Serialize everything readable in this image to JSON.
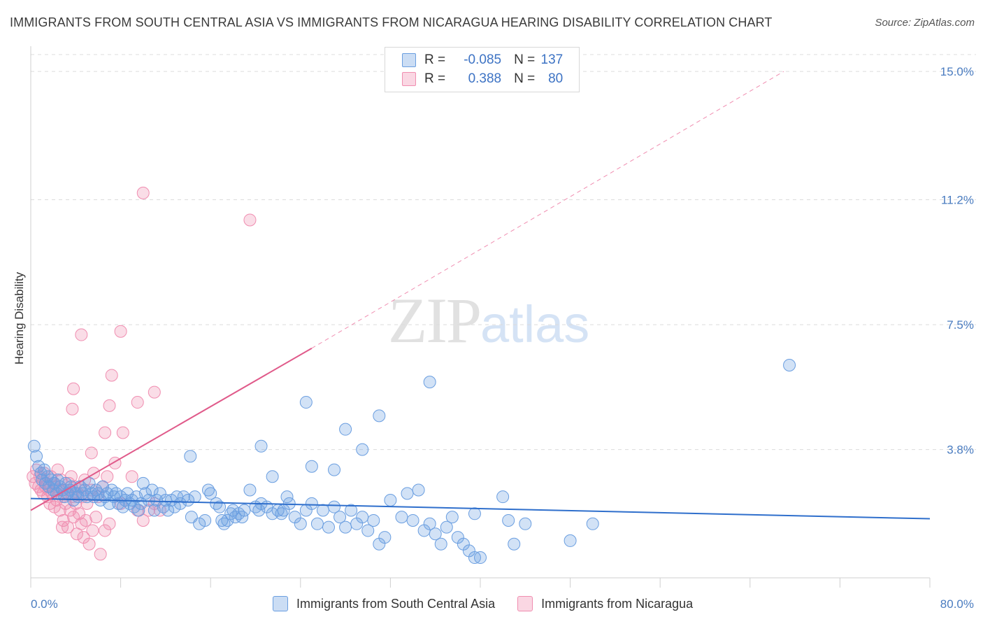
{
  "title": "IMMIGRANTS FROM SOUTH CENTRAL ASIA VS IMMIGRANTS FROM NICARAGUA HEARING DISABILITY CORRELATION CHART",
  "source": "Source: ZipAtlas.com",
  "watermark": {
    "zip": "ZIP",
    "atlas": "atlas"
  },
  "legend": {
    "rows": [
      {
        "r_label": "R =",
        "r_value": "-0.085",
        "n_label": "N =",
        "n_value": "137",
        "color": "#6a9ee0"
      },
      {
        "r_label": "R =",
        "r_value": "0.388",
        "n_label": "N =",
        "n_value": "80",
        "color": "#f08db0"
      }
    ]
  },
  "bottom_legend": {
    "series1": "Immigrants from South Central Asia",
    "series2": "Immigrants from Nicaragua"
  },
  "chart_data": {
    "type": "scatter",
    "title": "IMMIGRANTS FROM SOUTH CENTRAL ASIA VS IMMIGRANTS FROM NICARAGUA HEARING DISABILITY CORRELATION CHART",
    "xlabel": "",
    "ylabel": "Hearing Disability",
    "xlim": [
      0,
      80
    ],
    "ylim": [
      0,
      15.5
    ],
    "x_ticks": [
      "0.0%",
      "80.0%"
    ],
    "y_ticks": [
      {
        "value": 3.8,
        "label": "3.8%"
      },
      {
        "value": 7.5,
        "label": "7.5%"
      },
      {
        "value": 11.2,
        "label": "11.2%"
      },
      {
        "value": 15.0,
        "label": "15.0%"
      }
    ],
    "grid": true,
    "legend_position": "top-center",
    "colors": {
      "blue": "#6a9ee0",
      "blue_line": "#2f6fcc",
      "pink": "#f08db0",
      "pink_line": "#e05a8a"
    },
    "series": [
      {
        "name": "Immigrants from South Central Asia",
        "color": "#6a9ee0",
        "trend": {
          "x": [
            0,
            80
          ],
          "y": [
            2.35,
            1.75
          ],
          "style": "solid"
        },
        "points": [
          [
            0.3,
            3.9
          ],
          [
            0.5,
            3.6
          ],
          [
            0.7,
            3.3
          ],
          [
            0.9,
            3.1
          ],
          [
            1.0,
            2.9
          ],
          [
            1.2,
            3.2
          ],
          [
            1.3,
            2.8
          ],
          [
            1.5,
            3.0
          ],
          [
            1.6,
            2.7
          ],
          [
            1.8,
            2.9
          ],
          [
            2.0,
            2.6
          ],
          [
            2.1,
            2.8
          ],
          [
            2.3,
            2.5
          ],
          [
            2.4,
            2.9
          ],
          [
            2.6,
            2.7
          ],
          [
            2.8,
            2.6
          ],
          [
            3.0,
            2.4
          ],
          [
            3.1,
            2.8
          ],
          [
            3.3,
            2.5
          ],
          [
            3.5,
            2.6
          ],
          [
            3.6,
            2.7
          ],
          [
            3.8,
            2.3
          ],
          [
            4.0,
            2.5
          ],
          [
            4.2,
            2.4
          ],
          [
            4.4,
            2.7
          ],
          [
            4.6,
            2.5
          ],
          [
            4.8,
            2.6
          ],
          [
            5.0,
            2.4
          ],
          [
            5.2,
            2.8
          ],
          [
            5.4,
            2.5
          ],
          [
            5.6,
            2.4
          ],
          [
            5.8,
            2.6
          ],
          [
            6.0,
            2.5
          ],
          [
            6.2,
            2.3
          ],
          [
            6.4,
            2.7
          ],
          [
            6.6,
            2.4
          ],
          [
            6.8,
            2.5
          ],
          [
            7.0,
            2.2
          ],
          [
            7.2,
            2.6
          ],
          [
            7.4,
            2.4
          ],
          [
            7.6,
            2.5
          ],
          [
            7.8,
            2.2
          ],
          [
            8.0,
            2.4
          ],
          [
            8.2,
            2.1
          ],
          [
            8.4,
            2.3
          ],
          [
            8.6,
            2.5
          ],
          [
            8.8,
            2.2
          ],
          [
            9.0,
            2.3
          ],
          [
            9.2,
            2.1
          ],
          [
            9.4,
            2.4
          ],
          [
            9.6,
            2.0
          ],
          [
            9.8,
            2.2
          ],
          [
            10.0,
            2.8
          ],
          [
            10.2,
            2.5
          ],
          [
            10.5,
            2.3
          ],
          [
            10.8,
            2.6
          ],
          [
            11.0,
            2.0
          ],
          [
            11.2,
            2.3
          ],
          [
            11.5,
            2.5
          ],
          [
            11.8,
            2.1
          ],
          [
            12.0,
            2.3
          ],
          [
            12.2,
            2.0
          ],
          [
            12.5,
            2.3
          ],
          [
            12.8,
            2.1
          ],
          [
            13.0,
            2.4
          ],
          [
            13.3,
            2.2
          ],
          [
            13.6,
            2.4
          ],
          [
            14.0,
            2.3
          ],
          [
            14.3,
            1.8
          ],
          [
            14.6,
            2.4
          ],
          [
            14.2,
            3.6
          ],
          [
            15.0,
            1.6
          ],
          [
            15.5,
            1.7
          ],
          [
            15.8,
            2.6
          ],
          [
            16.0,
            2.5
          ],
          [
            16.5,
            2.2
          ],
          [
            16.8,
            2.1
          ],
          [
            17.0,
            1.7
          ],
          [
            17.2,
            1.6
          ],
          [
            17.5,
            1.7
          ],
          [
            17.8,
            1.9
          ],
          [
            18.0,
            2.0
          ],
          [
            18.2,
            1.8
          ],
          [
            18.5,
            1.9
          ],
          [
            18.8,
            1.8
          ],
          [
            19.0,
            2.0
          ],
          [
            19.5,
            2.6
          ],
          [
            20.0,
            2.1
          ],
          [
            20.3,
            2.0
          ],
          [
            20.5,
            2.2
          ],
          [
            21.0,
            2.1
          ],
          [
            21.5,
            1.9
          ],
          [
            22.0,
            2.0
          ],
          [
            22.3,
            1.9
          ],
          [
            22.5,
            2.0
          ],
          [
            22.8,
            2.4
          ],
          [
            23.0,
            2.2
          ],
          [
            23.5,
            1.8
          ],
          [
            24.0,
            1.6
          ],
          [
            24.5,
            2.0
          ],
          [
            25.0,
            2.2
          ],
          [
            25.5,
            1.6
          ],
          [
            26.0,
            2.0
          ],
          [
            26.5,
            1.5
          ],
          [
            27.0,
            2.1
          ],
          [
            27.5,
            1.8
          ],
          [
            28.0,
            1.5
          ],
          [
            28.5,
            2.0
          ],
          [
            29.0,
            1.6
          ],
          [
            29.5,
            1.8
          ],
          [
            30.0,
            1.4
          ],
          [
            30.5,
            1.7
          ],
          [
            31.0,
            1.0
          ],
          [
            31.5,
            1.2
          ],
          [
            32.0,
            2.3
          ],
          [
            33.0,
            1.8
          ],
          [
            33.5,
            2.5
          ],
          [
            34.0,
            1.7
          ],
          [
            34.5,
            2.6
          ],
          [
            35.0,
            1.4
          ],
          [
            35.5,
            1.6
          ],
          [
            36.0,
            1.3
          ],
          [
            36.5,
            1.0
          ],
          [
            37.0,
            1.5
          ],
          [
            37.5,
            1.8
          ],
          [
            38.0,
            1.2
          ],
          [
            38.5,
            1.0
          ],
          [
            39.0,
            0.8
          ],
          [
            39.5,
            0.6
          ],
          [
            40.0,
            0.6
          ],
          [
            24.5,
            5.2
          ],
          [
            28.0,
            4.4
          ],
          [
            35.5,
            5.8
          ],
          [
            31.0,
            4.8
          ],
          [
            27.0,
            3.2
          ],
          [
            29.5,
            3.8
          ],
          [
            20.5,
            3.9
          ],
          [
            21.5,
            3.0
          ],
          [
            25.0,
            3.3
          ],
          [
            39.5,
            1.9
          ],
          [
            42.0,
            2.4
          ],
          [
            42.5,
            1.7
          ],
          [
            43.0,
            1.0
          ],
          [
            44.0,
            1.6
          ],
          [
            48.0,
            1.1
          ],
          [
            50.0,
            1.6
          ],
          [
            67.5,
            6.3
          ]
        ]
      },
      {
        "name": "Immigrants from Nicaragua",
        "color": "#f08db0",
        "trend": {
          "x": [
            0,
            25
          ],
          "y": [
            2.0,
            6.8
          ],
          "style": "solid",
          "extend_to": [
            67,
            15.0
          ]
        },
        "points": [
          [
            0.2,
            3.0
          ],
          [
            0.4,
            2.8
          ],
          [
            0.5,
            3.2
          ],
          [
            0.7,
            2.7
          ],
          [
            0.8,
            3.0
          ],
          [
            0.9,
            2.6
          ],
          [
            1.0,
            2.9
          ],
          [
            1.1,
            2.5
          ],
          [
            1.2,
            3.1
          ],
          [
            1.3,
            2.7
          ],
          [
            1.4,
            2.8
          ],
          [
            1.5,
            2.4
          ],
          [
            1.6,
            2.6
          ],
          [
            1.7,
            2.2
          ],
          [
            1.8,
            3.0
          ],
          [
            1.9,
            2.5
          ],
          [
            2.0,
            2.8
          ],
          [
            2.1,
            2.1
          ],
          [
            2.2,
            2.7
          ],
          [
            2.3,
            2.3
          ],
          [
            2.4,
            3.2
          ],
          [
            2.5,
            2.6
          ],
          [
            2.6,
            2.0
          ],
          [
            2.7,
            2.9
          ],
          [
            2.8,
            2.4
          ],
          [
            2.9,
            1.7
          ],
          [
            3.0,
            2.6
          ],
          [
            3.1,
            2.2
          ],
          [
            3.2,
            2.5
          ],
          [
            3.3,
            1.5
          ],
          [
            3.4,
            2.8
          ],
          [
            3.5,
            2.0
          ],
          [
            3.6,
            3.0
          ],
          [
            3.7,
            2.4
          ],
          [
            3.8,
            1.8
          ],
          [
            3.9,
            2.7
          ],
          [
            4.0,
            2.2
          ],
          [
            4.1,
            1.3
          ],
          [
            4.2,
            2.5
          ],
          [
            4.3,
            1.9
          ],
          [
            4.4,
            2.7
          ],
          [
            4.5,
            1.6
          ],
          [
            4.6,
            2.4
          ],
          [
            4.7,
            1.2
          ],
          [
            4.8,
            2.9
          ],
          [
            4.9,
            1.7
          ],
          [
            5.0,
            2.2
          ],
          [
            5.2,
            1.0
          ],
          [
            5.4,
            2.6
          ],
          [
            5.5,
            1.4
          ],
          [
            5.6,
            3.1
          ],
          [
            5.8,
            1.8
          ],
          [
            6.0,
            2.4
          ],
          [
            6.2,
            0.7
          ],
          [
            6.4,
            2.7
          ],
          [
            6.6,
            1.4
          ],
          [
            6.8,
            3.0
          ],
          [
            7.0,
            1.6
          ],
          [
            7.5,
            3.4
          ],
          [
            8.0,
            2.2
          ],
          [
            9.0,
            3.0
          ],
          [
            9.5,
            2.0
          ],
          [
            10.0,
            1.7
          ],
          [
            10.5,
            2.0
          ],
          [
            11.0,
            2.2
          ],
          [
            11.5,
            2.0
          ],
          [
            3.8,
            5.6
          ],
          [
            3.7,
            5.0
          ],
          [
            4.5,
            7.2
          ],
          [
            5.4,
            3.7
          ],
          [
            6.6,
            4.3
          ],
          [
            7.0,
            5.1
          ],
          [
            7.2,
            6.0
          ],
          [
            8.0,
            7.3
          ],
          [
            8.2,
            4.3
          ],
          [
            9.5,
            5.2
          ],
          [
            10.0,
            11.4
          ],
          [
            11.0,
            5.5
          ],
          [
            19.5,
            10.6
          ],
          [
            2.8,
            1.5
          ]
        ]
      }
    ]
  }
}
